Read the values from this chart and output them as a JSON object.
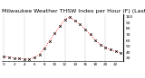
{
  "title": "Milwaukee Weather THSW Index per Hour (F) (Last 24 Hours)",
  "hours": [
    0,
    1,
    2,
    3,
    4,
    5,
    6,
    7,
    8,
    9,
    10,
    11,
    12,
    13,
    14,
    15,
    16,
    17,
    18,
    19,
    20,
    21,
    22,
    23
  ],
  "values": [
    33,
    31,
    30,
    29,
    28,
    28,
    31,
    36,
    47,
    59,
    72,
    84,
    96,
    100,
    93,
    87,
    79,
    70,
    60,
    53,
    48,
    44,
    41,
    39
  ],
  "line_color": "#ff0000",
  "marker_color": "#000000",
  "bg_color": "#ffffff",
  "grid_color": "#888888",
  "plot_bg": "#ffffff",
  "ylim": [
    25,
    105
  ],
  "yticks": [
    30,
    40,
    50,
    60,
    70,
    80,
    90,
    100
  ],
  "title_fontsize": 4.5,
  "tick_fontsize": 3.2,
  "xlabel_fontsize": 3.0,
  "vgrid_positions": [
    0,
    4,
    8,
    12,
    16,
    20
  ]
}
